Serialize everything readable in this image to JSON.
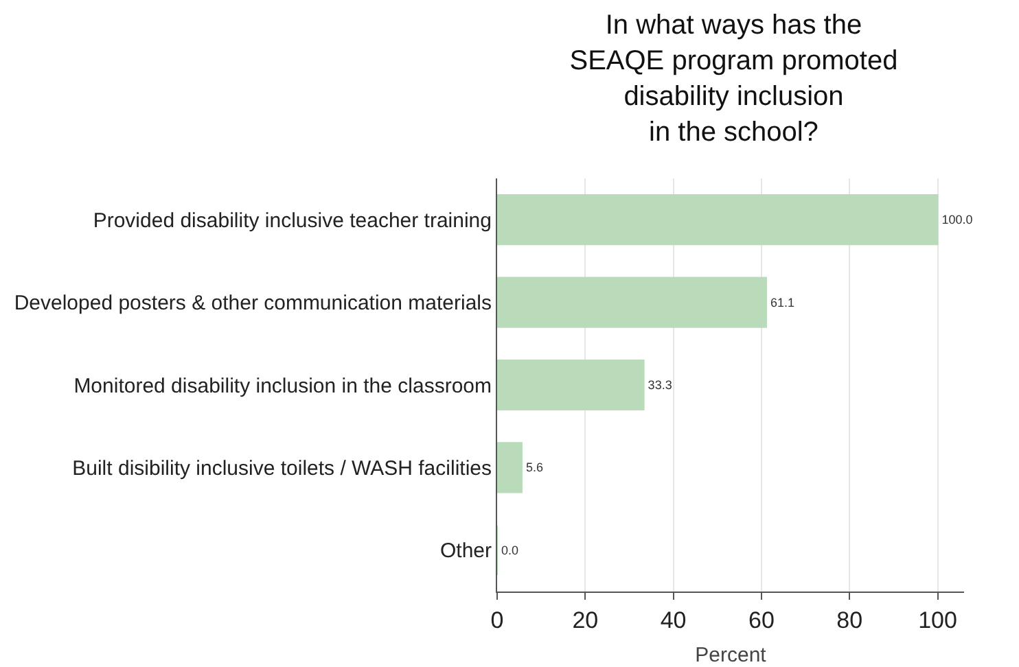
{
  "chart_data": {
    "type": "bar",
    "orientation": "horizontal",
    "title": "In what ways has the\nSEAQE program promoted\ndisability inclusion\nin the school?",
    "xlabel": "Percent",
    "categories": [
      "Provided disability inclusive teacher training",
      "Developed posters & other communication materials",
      "Monitored disability inclusion in the classroom",
      "Built disibility inclusive toilets / WASH facilities",
      "Other"
    ],
    "values": [
      100.0,
      61.1,
      33.3,
      5.6,
      0.0
    ],
    "value_labels": [
      "100.0",
      "61.1",
      "33.3",
      "5.6",
      "0.0"
    ],
    "color": "#b9dbb9",
    "xlim": [
      0,
      106
    ],
    "xticks": [
      0,
      20,
      40,
      60,
      80,
      100
    ],
    "grid": "x",
    "legend": false
  }
}
